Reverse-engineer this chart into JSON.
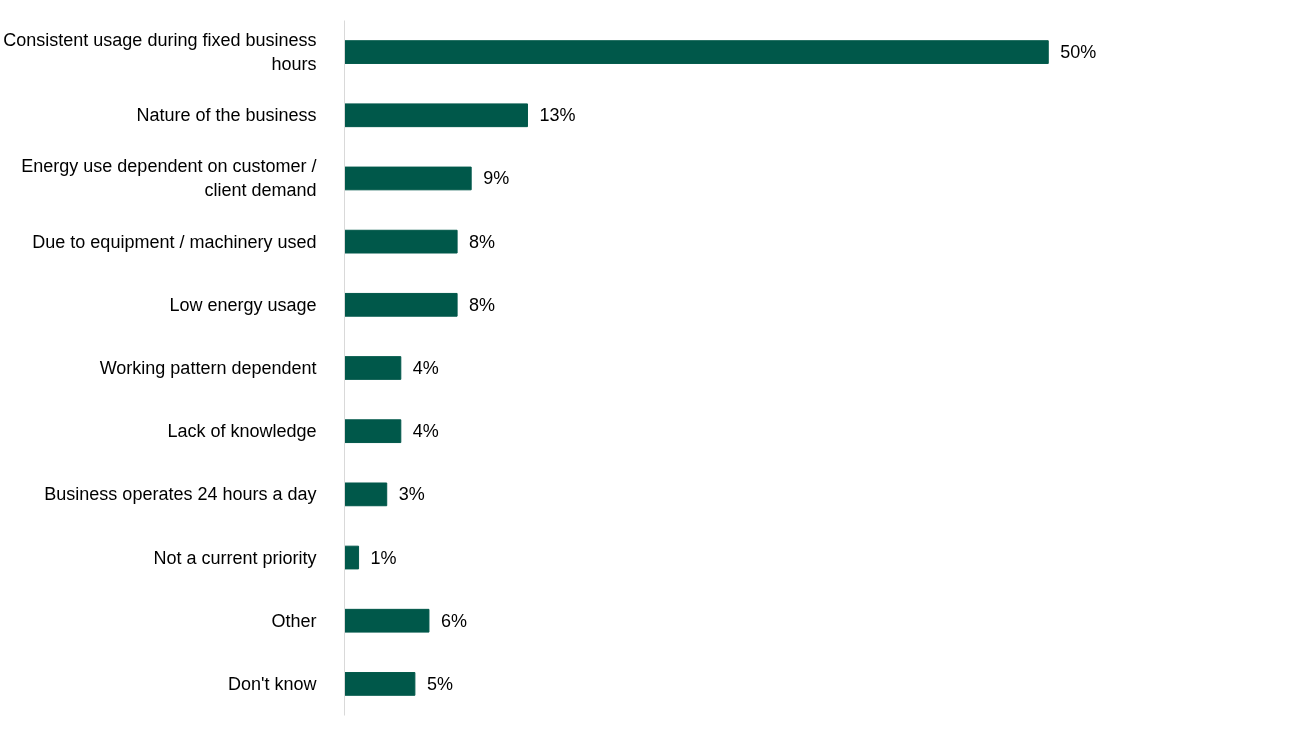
{
  "chart_data": {
    "type": "bar",
    "orientation": "horizontal",
    "categories": [
      "Consistent usage during fixed business hours",
      "Nature of the business",
      "Energy use dependent on customer / client demand",
      "Due to equipment / machinery used",
      "Low energy usage",
      "Working pattern dependent",
      "Lack of knowledge",
      "Business operates 24 hours a day",
      "Not a current priority",
      "Other",
      "Don't know"
    ],
    "values": [
      50,
      13,
      9,
      8,
      8,
      4,
      4,
      3,
      1,
      6,
      5
    ],
    "value_labels": [
      "50%",
      "13%",
      "9%",
      "8%",
      "8%",
      "4%",
      "4%",
      "3%",
      "1%",
      "6%",
      "5%"
    ],
    "color": "#00584a"
  }
}
